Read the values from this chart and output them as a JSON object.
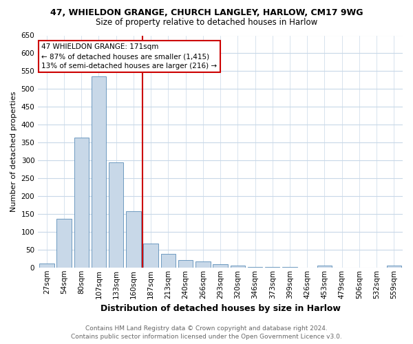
{
  "title": "47, WHIELDON GRANGE, CHURCH LANGLEY, HARLOW, CM17 9WG",
  "subtitle": "Size of property relative to detached houses in Harlow",
  "xlabel": "Distribution of detached houses by size in Harlow",
  "ylabel": "Number of detached properties",
  "categories": [
    "27sqm",
    "54sqm",
    "80sqm",
    "107sqm",
    "133sqm",
    "160sqm",
    "187sqm",
    "213sqm",
    "240sqm",
    "266sqm",
    "293sqm",
    "320sqm",
    "346sqm",
    "373sqm",
    "399sqm",
    "426sqm",
    "453sqm",
    "479sqm",
    "506sqm",
    "532sqm",
    "559sqm"
  ],
  "values": [
    11,
    136,
    363,
    535,
    294,
    157,
    67,
    39,
    20,
    16,
    10,
    5,
    2,
    2,
    1,
    0,
    5,
    0,
    0,
    0,
    5
  ],
  "bar_color": "#c8d8e8",
  "bar_edge_color": "#5b8db8",
  "vline_x": 5.5,
  "vline_color": "#cc0000",
  "annotation_text": "47 WHIELDON GRANGE: 171sqm\n← 87% of detached houses are smaller (1,415)\n13% of semi-detached houses are larger (216) →",
  "annotation_box_color": "#ffffff",
  "annotation_box_edge": "#cc0000",
  "ylim": [
    0,
    650
  ],
  "yticks": [
    0,
    50,
    100,
    150,
    200,
    250,
    300,
    350,
    400,
    450,
    500,
    550,
    600,
    650
  ],
  "footer_line1": "Contains HM Land Registry data © Crown copyright and database right 2024.",
  "footer_line2": "Contains public sector information licensed under the Open Government Licence v3.0.",
  "bg_color": "#ffffff",
  "grid_color": "#c8d8e8",
  "title_fontsize": 9,
  "subtitle_fontsize": 8.5,
  "ylabel_fontsize": 8,
  "xlabel_fontsize": 9,
  "tick_fontsize": 7.5,
  "ann_fontsize": 7.5,
  "footer_fontsize": 6.5
}
